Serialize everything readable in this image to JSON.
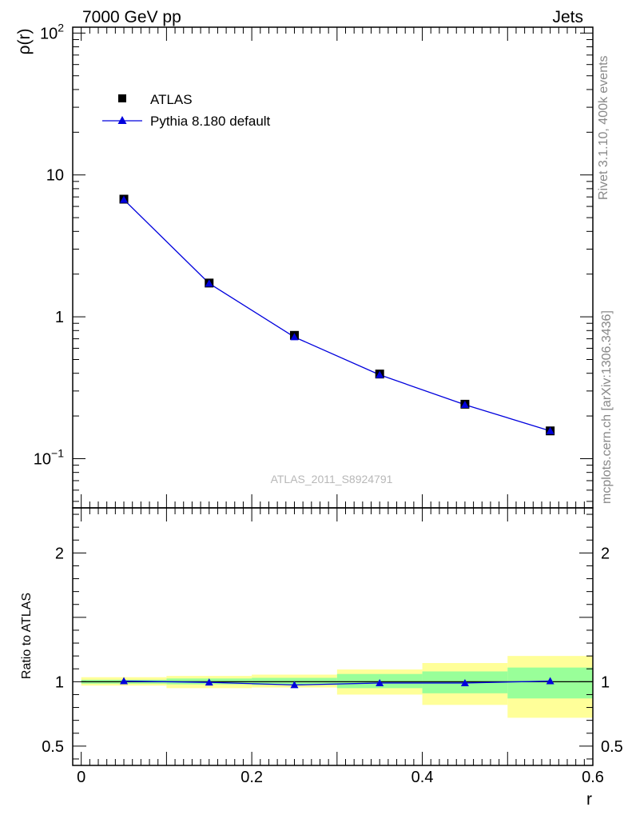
{
  "header": {
    "left": "7000 GeV pp",
    "right": "Jets"
  },
  "side": {
    "rivet": "Rivet 3.1.10,  400k events",
    "mcplots": "mcplots.cern.ch [arXiv:1306.3436]"
  },
  "watermark": "ATLAS_2011_S8924791",
  "chart_data": [
    {
      "type": "line",
      "panel": "main",
      "ylabel": "ρ(r)",
      "xlabel": "r",
      "yscale": "log",
      "xlim": [
        -0.01,
        0.6
      ],
      "ylim": [
        0.045,
        110
      ],
      "x": [
        0.05,
        0.15,
        0.25,
        0.35,
        0.45,
        0.55
      ],
      "series": [
        {
          "name": "ATLAS",
          "marker": "square",
          "color": "#000000",
          "values": [
            6.75,
            1.73,
            0.74,
            0.395,
            0.242,
            0.157
          ]
        },
        {
          "name": "Pythia 8.180 default",
          "marker": "triangle",
          "color": "#0000dd",
          "values": [
            6.7,
            1.72,
            0.72,
            0.39,
            0.24,
            0.157
          ]
        }
      ],
      "yticks": [
        {
          "value": 0.1,
          "base": "10",
          "exp": "−1"
        },
        {
          "value": 1,
          "label": "1"
        },
        {
          "value": 10,
          "label": "10"
        },
        {
          "value": 100,
          "base": "10",
          "exp": "2"
        }
      ],
      "legend": [
        "ATLAS",
        "Pythia 8.180 default"
      ]
    },
    {
      "type": "line",
      "panel": "ratio",
      "ylabel": "Ratio to ATLAS",
      "xlabel": "r",
      "xlim": [
        -0.01,
        0.6
      ],
      "ylim": [
        0.35,
        2.35
      ],
      "bins": [
        [
          0.0,
          0.1
        ],
        [
          0.1,
          0.2
        ],
        [
          0.2,
          0.3
        ],
        [
          0.3,
          0.4
        ],
        [
          0.4,
          0.5
        ],
        [
          0.5,
          0.6
        ]
      ],
      "band_inner": [
        [
          0.985,
          1.015
        ],
        [
          0.98,
          1.025
        ],
        [
          0.975,
          1.03
        ],
        [
          0.95,
          1.06
        ],
        [
          0.91,
          1.08
        ],
        [
          0.87,
          1.11
        ]
      ],
      "band_outer": [
        [
          0.97,
          1.035
        ],
        [
          0.95,
          1.045
        ],
        [
          0.955,
          1.055
        ],
        [
          0.9,
          1.095
        ],
        [
          0.82,
          1.145
        ],
        [
          0.72,
          1.2
        ]
      ],
      "x": [
        0.05,
        0.15,
        0.25,
        0.35,
        0.45,
        0.55
      ],
      "ratio": [
        1.005,
        0.995,
        0.975,
        0.99,
        0.99,
        1.005
      ],
      "yticks": [
        {
          "value": 0.5,
          "label": "0.5"
        },
        {
          "value": 1,
          "label": "1"
        },
        {
          "value": 2,
          "label": "2"
        }
      ],
      "xticks": [
        {
          "value": 0,
          "label": "0"
        },
        {
          "value": 0.2,
          "label": "0.2"
        },
        {
          "value": 0.4,
          "label": "0.4"
        },
        {
          "value": 0.6,
          "label": "0.6"
        }
      ]
    }
  ]
}
